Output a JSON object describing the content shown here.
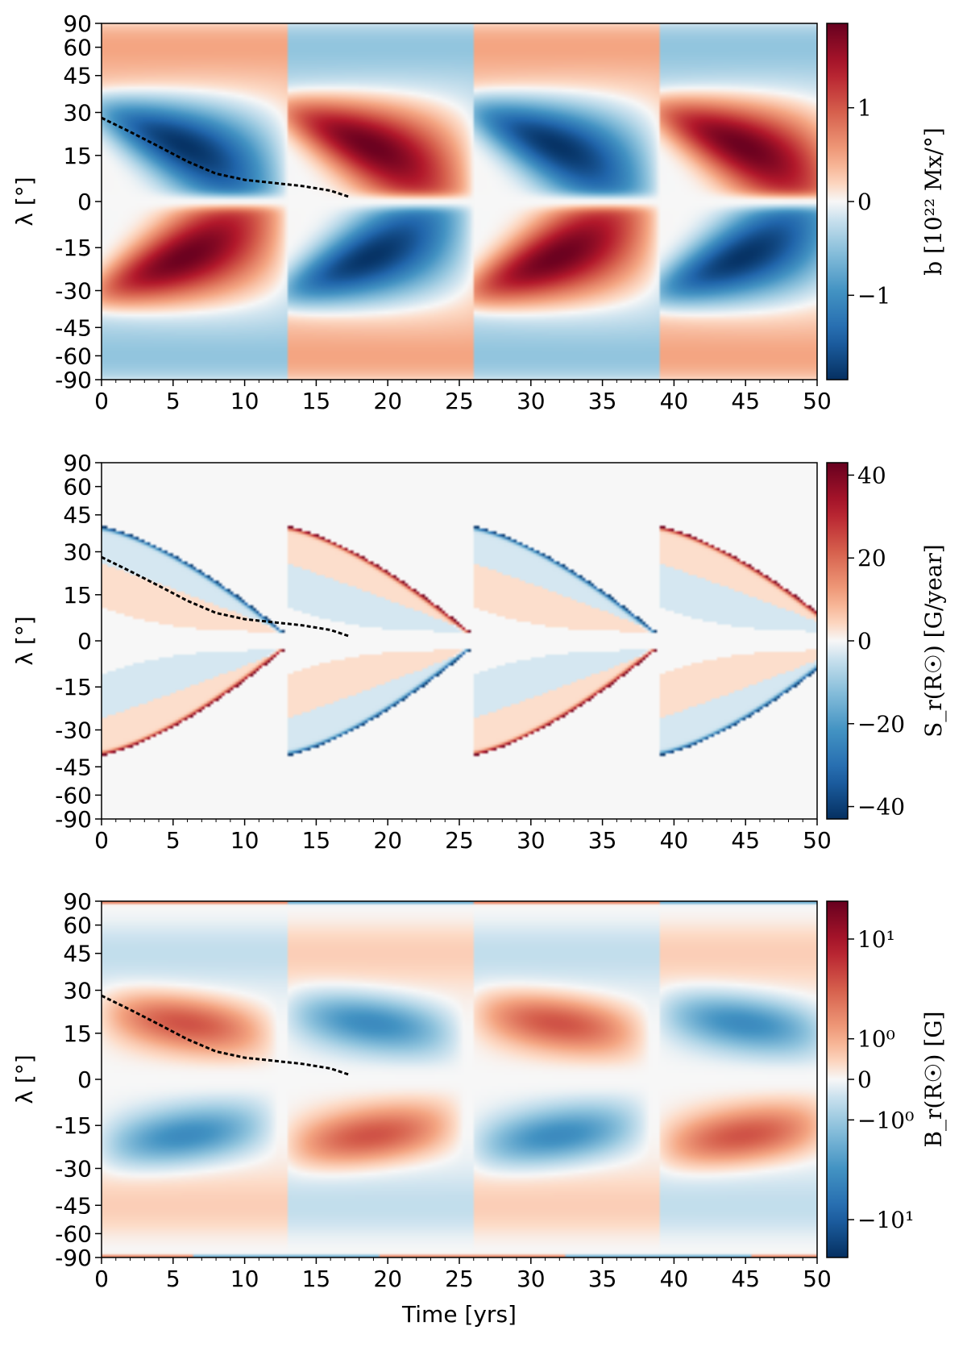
{
  "chart_data": [
    {
      "type": "heatmap",
      "xlabel": "",
      "ylabel": "λ [°]",
      "xlim": [
        0,
        50
      ],
      "ylim": [
        -90,
        90
      ],
      "y_scale": "sine-latitude",
      "xticks": [
        0,
        5,
        10,
        15,
        20,
        25,
        30,
        35,
        40,
        45,
        50
      ],
      "yticks": [
        90,
        60,
        45,
        30,
        15,
        0,
        -15,
        -30,
        -45,
        -60,
        -90
      ],
      "colormap": "RdBu_r",
      "colorbar": {
        "label": "b [10²² Mx/°]",
        "range": [
          -1.9,
          1.9
        ],
        "ticks": [
          1,
          0,
          -1
        ],
        "tick_labels": [
          "1",
          "0",
          "−1"
        ]
      },
      "cycle_period_years": 13,
      "first_cycle_polarity": -1,
      "pattern": "butterfly-wings",
      "overlay_curve": {
        "style": "black-dashed",
        "points": [
          [
            0,
            28
          ],
          [
            2,
            23
          ],
          [
            4,
            18
          ],
          [
            6,
            13
          ],
          [
            8,
            9
          ],
          [
            10,
            7
          ],
          [
            12,
            6
          ],
          [
            14,
            5
          ],
          [
            16,
            3.5
          ],
          [
            17.3,
            1.5
          ]
        ]
      }
    },
    {
      "type": "heatmap",
      "xlabel": "",
      "ylabel": "λ [°]",
      "xlim": [
        0,
        50
      ],
      "ylim": [
        -90,
        90
      ],
      "y_scale": "sine-latitude",
      "xticks": [
        0,
        5,
        10,
        15,
        20,
        25,
        30,
        35,
        40,
        45,
        50
      ],
      "yticks": [
        90,
        60,
        45,
        30,
        15,
        0,
        -15,
        -30,
        -45,
        -60,
        -90
      ],
      "colormap": "RdBu_r",
      "colorbar": {
        "label": "S_r(R☉) [G/year]",
        "range": [
          -43,
          43
        ],
        "ticks": [
          40,
          20,
          0,
          -20,
          -40
        ],
        "tick_labels": [
          "40",
          "20",
          "0",
          "−20",
          "−40"
        ]
      },
      "cycle_period_years": 13,
      "first_cycle_polarity": -1,
      "pattern": "source-loops",
      "overlay_curve": {
        "style": "black-dashed",
        "points": [
          [
            0,
            28
          ],
          [
            2,
            23
          ],
          [
            4,
            18
          ],
          [
            6,
            13
          ],
          [
            8,
            9
          ],
          [
            10,
            7
          ],
          [
            12,
            6
          ],
          [
            14,
            5
          ],
          [
            16,
            3.5
          ],
          [
            17.3,
            1.5
          ]
        ]
      }
    },
    {
      "type": "heatmap",
      "xlabel": "Time [yrs]",
      "ylabel": "λ [°]",
      "xlim": [
        0,
        50
      ],
      "ylim": [
        -90,
        90
      ],
      "y_scale": "sine-latitude",
      "xticks": [
        0,
        5,
        10,
        15,
        20,
        25,
        30,
        35,
        40,
        45,
        50
      ],
      "yticks": [
        90,
        60,
        45,
        30,
        15,
        0,
        -15,
        -30,
        -45,
        -60,
        -90
      ],
      "colormap": "RdBu_r",
      "colorbar": {
        "label": "B_r(R☉) [G]",
        "scale": "symlog",
        "range": [
          -20,
          20
        ],
        "ticks": [
          10,
          1,
          0,
          -1,
          -10
        ],
        "tick_labels": [
          "10¹",
          "10⁰",
          "0",
          "−10⁰",
          "−10¹"
        ]
      },
      "cycle_period_years": 13,
      "first_cycle_polarity": 1,
      "pattern": "radial-field",
      "overlay_curve": {
        "style": "black-dashed",
        "points": [
          [
            0,
            28
          ],
          [
            2,
            23
          ],
          [
            4,
            18
          ],
          [
            6,
            13
          ],
          [
            8,
            9
          ],
          [
            10,
            7
          ],
          [
            12,
            6
          ],
          [
            14,
            5
          ],
          [
            16,
            3.5
          ],
          [
            17.3,
            1.5
          ]
        ]
      }
    }
  ]
}
